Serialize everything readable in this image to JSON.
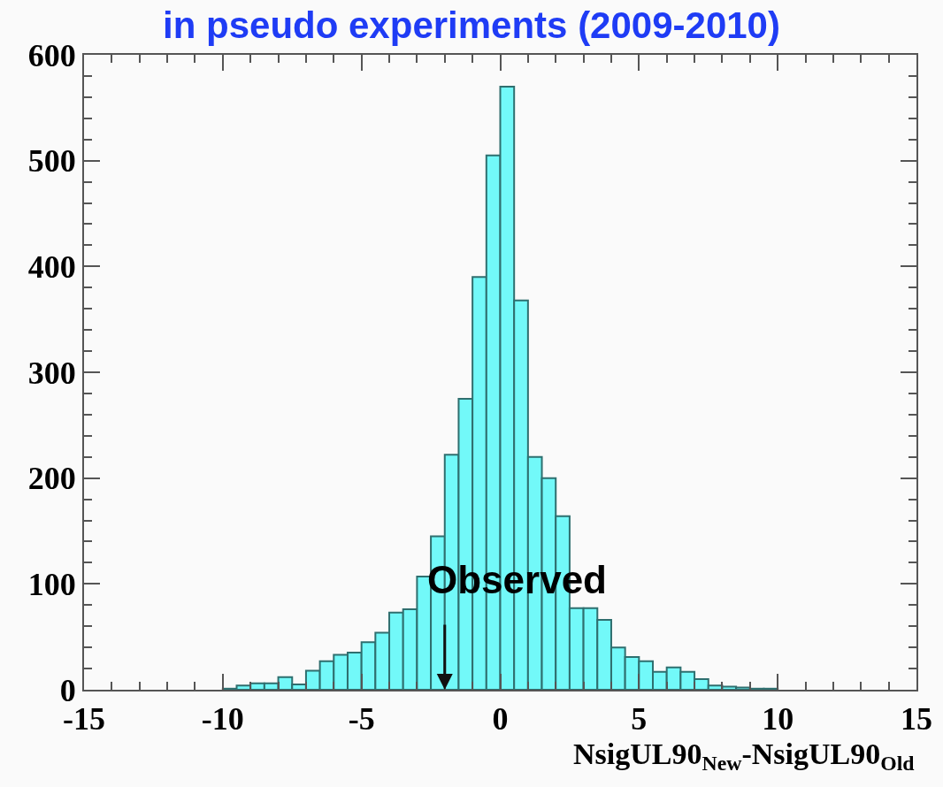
{
  "chart_data": {
    "type": "histogram",
    "title": "in pseudo experiments (2009-2010)",
    "xlabel": "NsigUL90$_{New}$-NsigUL90$_{Old}$",
    "bins": [
      -15,
      -14.5,
      -14,
      -13.5,
      -13,
      -12.5,
      -12,
      -11.5,
      -11,
      -10.5,
      -10,
      -9.5,
      -9,
      -8.5,
      -8,
      -7.5,
      -7,
      -6.5,
      -6,
      -5.5,
      -5,
      -4.5,
      -4,
      -3.5,
      -3,
      -2.5,
      -2,
      -1.5,
      -1,
      -0.5,
      0,
      0.5,
      1,
      1.5,
      2,
      2.5,
      3,
      3.5,
      4,
      4.5,
      5,
      5.5,
      6,
      6.5,
      7,
      7.5,
      8,
      8.5,
      9,
      9.5,
      10,
      10.5,
      11,
      11.5,
      12,
      12.5,
      13,
      13.5,
      14,
      14.5,
      15
    ],
    "values": [
      0,
      0,
      0,
      0,
      0,
      0,
      0,
      0,
      0,
      0,
      1,
      4,
      6,
      6,
      12,
      5,
      18,
      27,
      33,
      35,
      45,
      54,
      73,
      76,
      107,
      145,
      222,
      275,
      390,
      505,
      570,
      368,
      220,
      200,
      164,
      77,
      77,
      66,
      40,
      31,
      27,
      17,
      21,
      17,
      10,
      4,
      3,
      2,
      1,
      1,
      0,
      0,
      0,
      0,
      0,
      0,
      0,
      0,
      0,
      0
    ],
    "color": "#72f9f9",
    "annotations": [
      {
        "text": "Observed",
        "x": -2,
        "y": 0
      }
    ],
    "xlim": [
      -15,
      15
    ],
    "xticks": [
      -15,
      -10,
      -5,
      0,
      5,
      10,
      15
    ],
    "ylim": [
      0,
      600
    ],
    "yticks": [
      0,
      100,
      200,
      300,
      400,
      500,
      600
    ],
    "grid": false,
    "legend": false
  }
}
